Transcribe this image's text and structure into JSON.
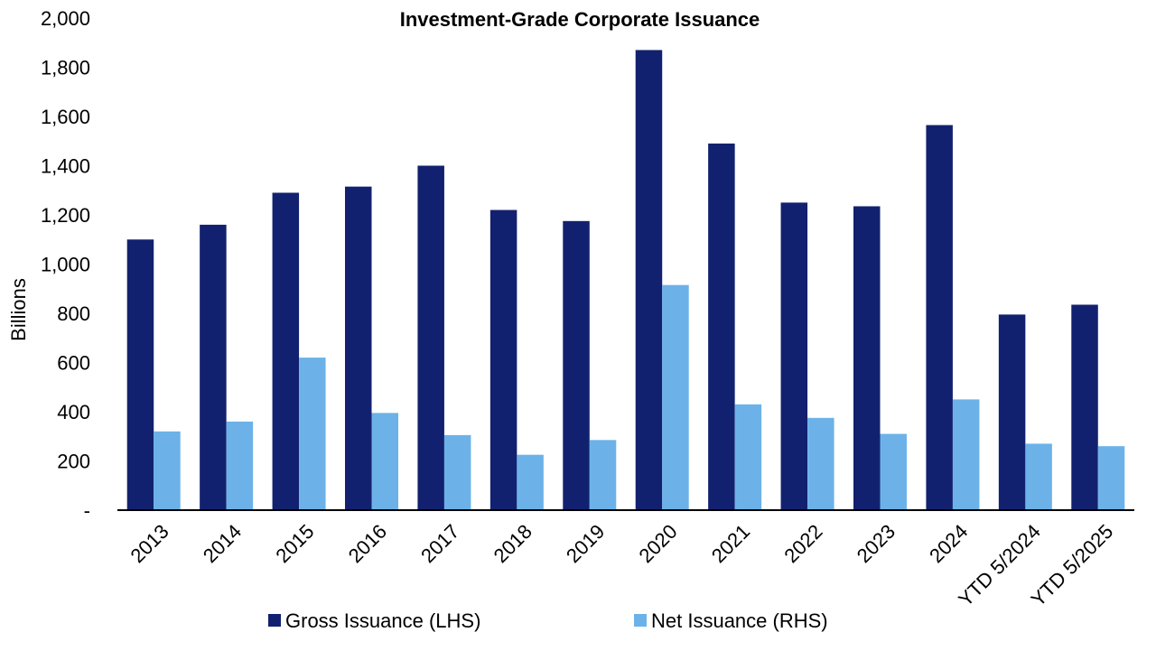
{
  "chart_data": {
    "type": "bar",
    "title": "Investment-Grade Corporate Issuance",
    "ylabel": "Billions",
    "xlabel": "",
    "ylim": [
      0,
      2000
    ],
    "yticks": [
      0,
      200,
      400,
      600,
      800,
      1000,
      1200,
      1400,
      1600,
      1800,
      2000
    ],
    "ytick_labels": [
      "-",
      "200",
      "400",
      "600",
      "800",
      "1,000",
      "1,200",
      "1,400",
      "1,600",
      "1,800",
      "2,000"
    ],
    "categories": [
      "2013",
      "2014",
      "2015",
      "2016",
      "2017",
      "2018",
      "2019",
      "2020",
      "2021",
      "2022",
      "2023",
      "2024",
      "YTD 5/2024",
      "YTD 5/2025"
    ],
    "series": [
      {
        "name": "Gross Issuance (LHS)",
        "color": "#12216f",
        "values": [
          1100,
          1160,
          1290,
          1315,
          1400,
          1220,
          1175,
          1870,
          1490,
          1250,
          1235,
          1565,
          795,
          835
        ]
      },
      {
        "name": "Net Issuance (RHS)",
        "color": "#6cb2e8",
        "values": [
          320,
          360,
          620,
          395,
          305,
          225,
          285,
          915,
          430,
          375,
          310,
          450,
          270,
          260
        ]
      }
    ],
    "legend_position": "bottom",
    "grid": false
  }
}
